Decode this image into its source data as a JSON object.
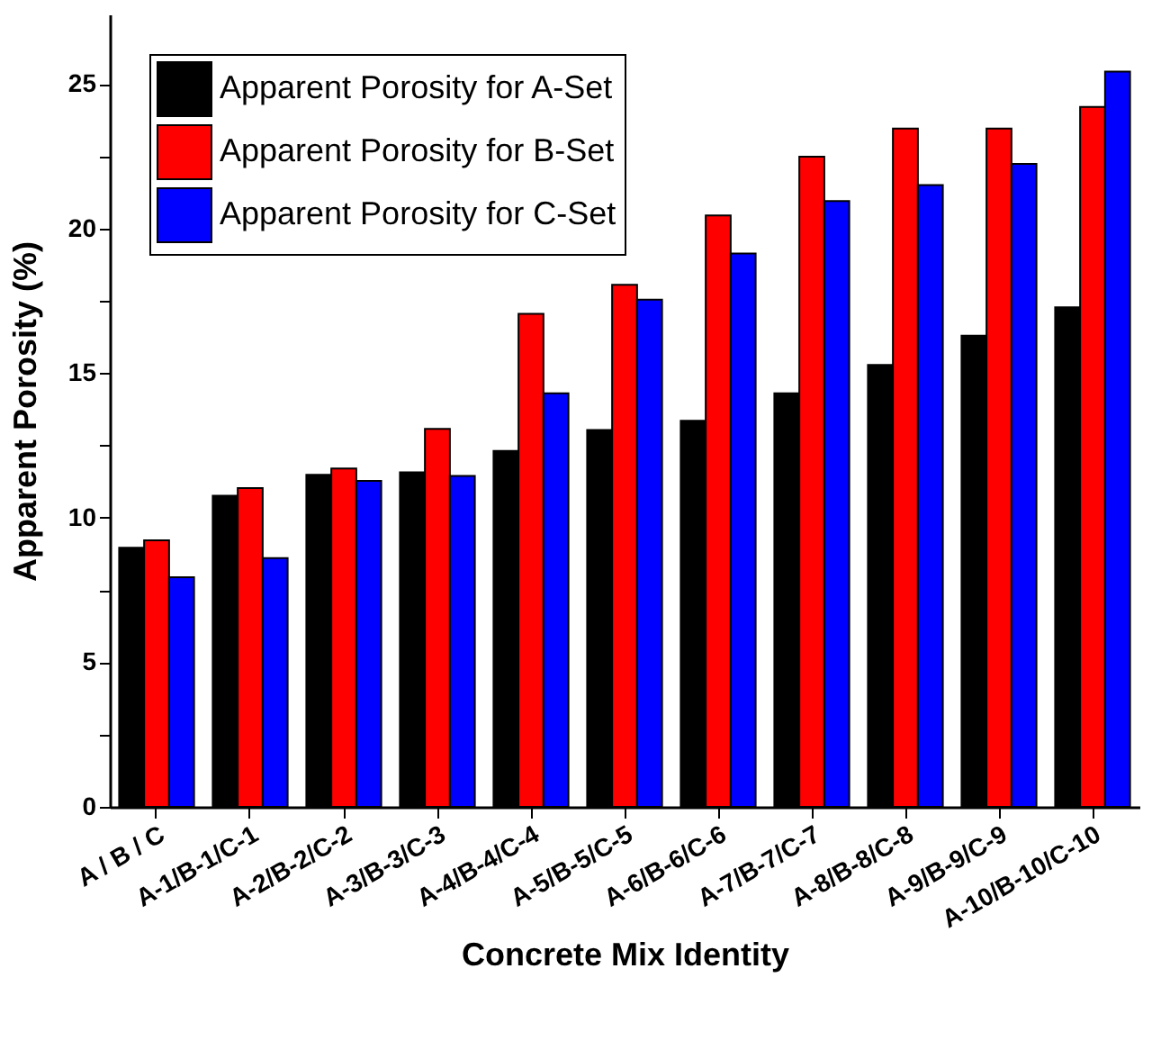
{
  "chart_data": {
    "type": "bar",
    "xlabel": "Concrete Mix Identity",
    "ylabel": "Apparent Porosity (%)",
    "categories": [
      "A / B / C",
      "A-1/B-1/C-1",
      "A-2/B-2/C-2",
      "A-3/B-3/C-3",
      "A-4/B-4/C-4",
      "A-5/B-5/C-5",
      "A-6/B-6/C-6",
      "A-7/B-7/C-7",
      "A-8/B-8/C-8",
      "A-9/B-9/C-9",
      "A-10/B-10/C-10"
    ],
    "series": [
      {
        "name": "Apparent Porosity for A-Set",
        "color": "#000000",
        "values": [
          8.96,
          10.76,
          11.48,
          11.57,
          12.31,
          13.03,
          13.35,
          14.3,
          15.28,
          16.29,
          17.27
        ]
      },
      {
        "name": "Apparent Porosity for B-Set",
        "color": "#ff0000",
        "values": [
          9.22,
          11.02,
          11.7,
          13.07,
          17.05,
          18.05,
          20.45,
          22.48,
          23.45,
          23.45,
          24.2
        ]
      },
      {
        "name": "Apparent Porosity for C-Set",
        "color": "#0000ff",
        "values": [
          7.94,
          8.6,
          11.27,
          11.44,
          14.3,
          17.54,
          19.13,
          20.95,
          21.5,
          22.23,
          25.42
        ]
      }
    ],
    "ylim": [
      0,
      27.4
    ],
    "yticks": [
      0,
      {
        "value": 2.5,
        "label": null
      },
      5,
      {
        "value": 7.5,
        "label": null
      },
      10,
      {
        "value": 12.5,
        "label": null
      },
      15,
      {
        "value": 17.5,
        "label": null
      },
      20,
      {
        "value": 22.5,
        "label": null
      },
      25
    ],
    "grid": false,
    "legend": "top left"
  }
}
